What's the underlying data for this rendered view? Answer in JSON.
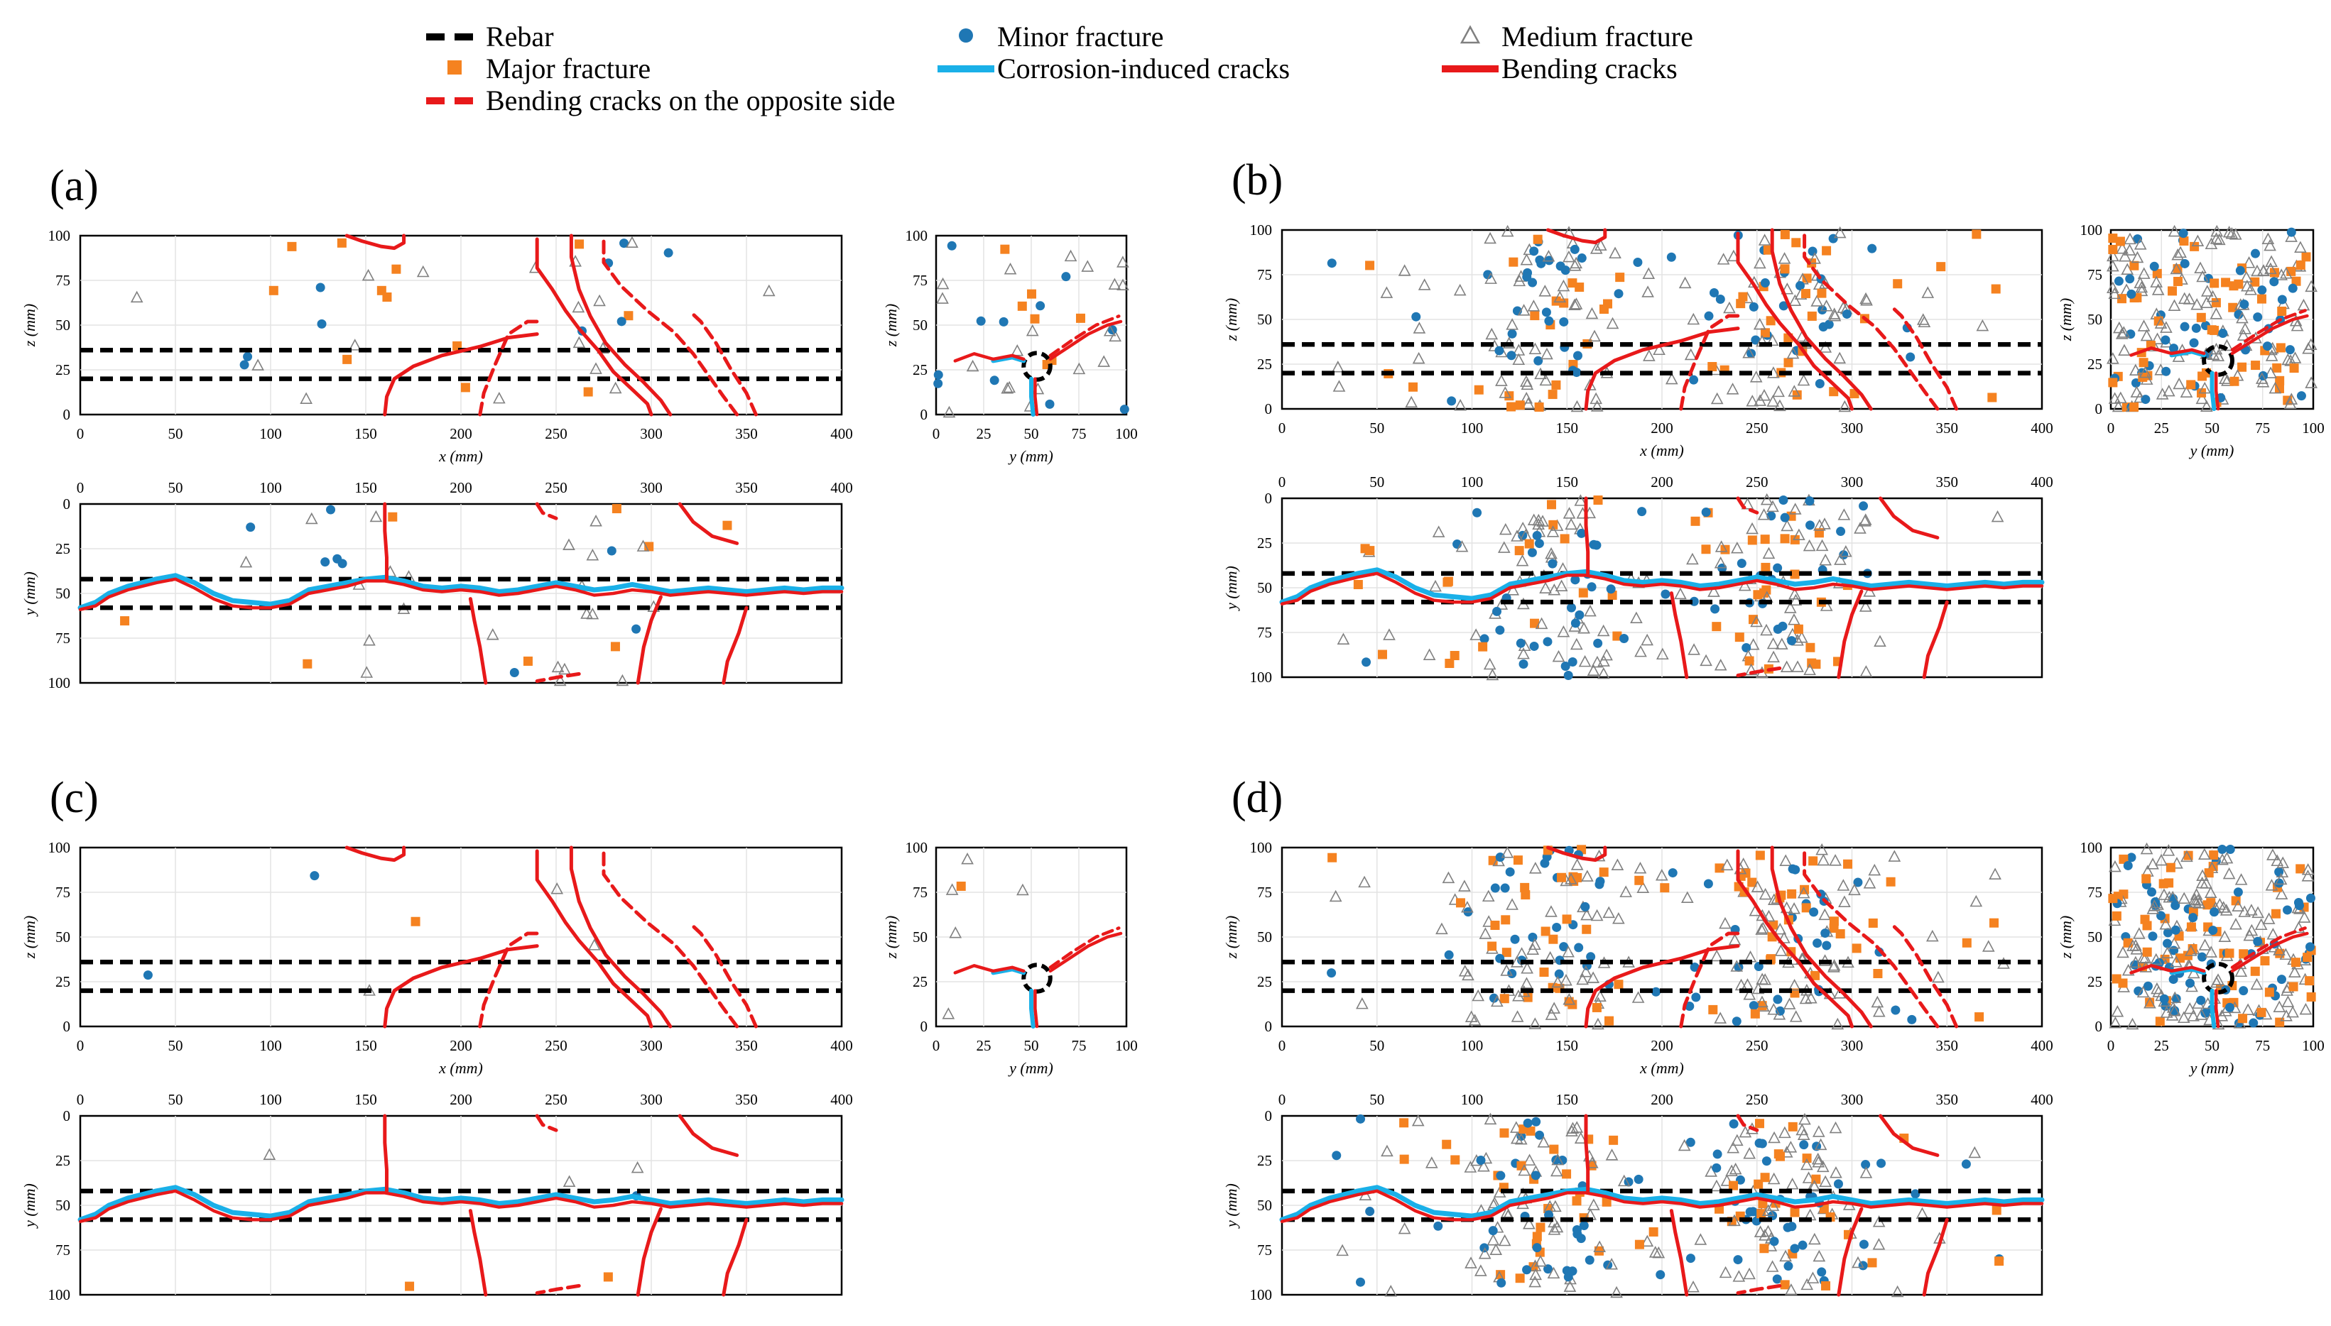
{
  "legend": {
    "items": [
      {
        "key": "rebar",
        "label": "Rebar",
        "kind": "dash",
        "color": "#000000"
      },
      {
        "key": "minor",
        "label": "Minor fracture",
        "kind": "circle",
        "color": "#1f77b4"
      },
      {
        "key": "medium",
        "label": "Medium fracture",
        "kind": "triangle",
        "color": "#808080"
      },
      {
        "key": "major",
        "label": "Major fracture",
        "kind": "square",
        "color": "#f58220"
      },
      {
        "key": "corrosion",
        "label": "Corrosion-induced cracks",
        "kind": "line",
        "color": "#1ab0e8"
      },
      {
        "key": "bending",
        "label": "Bending cracks",
        "kind": "line",
        "color": "#e8191a"
      },
      {
        "key": "bending_opp",
        "label": "Bending cracks on the opposite side",
        "kind": "dashline",
        "color": "#e8191a"
      }
    ]
  },
  "axis_labels": {
    "x": "x (mm)",
    "y": "y (mm)",
    "z": "z (mm)"
  },
  "chart_data": [
    {
      "panel": "(a)",
      "type": "scatter",
      "density": 38,
      "seed": 11,
      "xz": {
        "xlim": [
          0,
          400
        ],
        "zlim": [
          0,
          100
        ],
        "xticks": [
          "0",
          "50",
          "100",
          "150",
          "200",
          "250",
          "300",
          "350",
          "400"
        ],
        "zticks": [
          "0",
          "25",
          "50",
          "75",
          "100"
        ]
      },
      "xy": {
        "xlim": [
          0,
          400
        ],
        "ylim": [
          0,
          100
        ],
        "yticks": [
          "0",
          "25",
          "50",
          "75",
          "100"
        ]
      },
      "yz": {
        "ylim": [
          0,
          100
        ],
        "zlim": [
          0,
          100
        ],
        "yticks": [
          "0",
          "25",
          "50",
          "75",
          "100"
        ]
      }
    },
    {
      "panel": "(b)",
      "type": "scatter",
      "density": 230,
      "seed": 23,
      "xz": {
        "xlim": [
          0,
          400
        ],
        "zlim": [
          0,
          100
        ],
        "xticks": [
          "0",
          "50",
          "100",
          "150",
          "200",
          "250",
          "300",
          "350",
          "400"
        ],
        "zticks": [
          "0",
          "25",
          "50",
          "75",
          "100"
        ]
      },
      "xy": {
        "xlim": [
          0,
          400
        ],
        "ylim": [
          0,
          100
        ],
        "yticks": [
          "0",
          "25",
          "50",
          "75",
          "100"
        ]
      },
      "yz": {
        "ylim": [
          0,
          100
        ],
        "zlim": [
          0,
          100
        ],
        "yticks": [
          "0",
          "25",
          "50",
          "75",
          "100"
        ]
      }
    },
    {
      "panel": "(c)",
      "type": "scatter",
      "density": 6,
      "seed": 37,
      "xz": {
        "xlim": [
          0,
          400
        ],
        "zlim": [
          0,
          100
        ],
        "xticks": [
          "0",
          "50",
          "100",
          "150",
          "200",
          "250",
          "300",
          "350",
          "400"
        ],
        "zticks": [
          "0",
          "25",
          "50",
          "75",
          "100"
        ]
      },
      "xy": {
        "xlim": [
          0,
          400
        ],
        "ylim": [
          0,
          100
        ],
        "yticks": [
          "0",
          "25",
          "50",
          "75",
          "100"
        ]
      },
      "yz": {
        "ylim": [
          0,
          100
        ],
        "zlim": [
          0,
          100
        ],
        "yticks": [
          "0",
          "25",
          "50",
          "75",
          "100"
        ]
      }
    },
    {
      "panel": "(d)",
      "type": "scatter",
      "density": 270,
      "seed": 53,
      "xz": {
        "xlim": [
          0,
          400
        ],
        "zlim": [
          0,
          100
        ],
        "xticks": [
          "0",
          "50",
          "100",
          "150",
          "200",
          "250",
          "300",
          "350",
          "400"
        ],
        "zticks": [
          "0",
          "25",
          "50",
          "75",
          "100"
        ]
      },
      "xy": {
        "xlim": [
          0,
          400
        ],
        "ylim": [
          0,
          100
        ],
        "yticks": [
          "0",
          "25",
          "50",
          "75",
          "100"
        ]
      },
      "yz": {
        "ylim": [
          0,
          100
        ],
        "zlim": [
          0,
          100
        ],
        "yticks": [
          "0",
          "25",
          "50",
          "75",
          "100"
        ]
      }
    }
  ],
  "cracks": {
    "rebar_xz_z": [
      36,
      20
    ],
    "rebar_xy_y": [
      42,
      58
    ],
    "rebar_yz_center": [
      53,
      27
    ],
    "rebar_yz_radius": 7,
    "xz_bending": [
      [
        [
          160,
          0
        ],
        [
          161,
          10
        ],
        [
          165,
          20
        ],
        [
          175,
          27
        ],
        [
          190,
          33
        ],
        [
          210,
          38
        ],
        [
          225,
          43
        ],
        [
          240,
          45
        ]
      ],
      [
        [
          300,
          0
        ],
        [
          298,
          6
        ],
        [
          290,
          14
        ],
        [
          280,
          24
        ],
        [
          272,
          36
        ],
        [
          262,
          48
        ],
        [
          255,
          58
        ],
        [
          248,
          70
        ],
        [
          240,
          82
        ],
        [
          240,
          98
        ]
      ],
      [
        [
          310,
          0
        ],
        [
          305,
          8
        ],
        [
          296,
          18
        ],
        [
          286,
          28
        ],
        [
          276,
          40
        ],
        [
          268,
          55
        ],
        [
          262,
          70
        ],
        [
          258,
          88
        ],
        [
          258,
          100
        ]
      ],
      [
        [
          140,
          100
        ],
        [
          148,
          97
        ],
        [
          158,
          94
        ],
        [
          165,
          93
        ],
        [
          170,
          96
        ],
        [
          170,
          100
        ]
      ]
    ],
    "xz_bending_opp": [
      [
        [
          210,
          0
        ],
        [
          212,
          12
        ],
        [
          218,
          28
        ],
        [
          225,
          45
        ],
        [
          235,
          52
        ],
        [
          242,
          52
        ]
      ],
      [
        [
          345,
          0
        ],
        [
          338,
          10
        ],
        [
          330,
          22
        ],
        [
          322,
          34
        ],
        [
          312,
          46
        ],
        [
          298,
          58
        ],
        [
          284,
          72
        ],
        [
          275,
          85
        ],
        [
          275,
          100
        ]
      ],
      [
        [
          355,
          0
        ],
        [
          350,
          12
        ],
        [
          342,
          25
        ],
        [
          334,
          40
        ],
        [
          326,
          52
        ],
        [
          320,
          58
        ]
      ]
    ],
    "xy_corrosion": [
      [
        0,
        58
      ],
      [
        8,
        55
      ],
      [
        15,
        50
      ],
      [
        25,
        46
      ],
      [
        40,
        42
      ],
      [
        50,
        40
      ],
      [
        60,
        44
      ],
      [
        70,
        50
      ],
      [
        80,
        54
      ],
      [
        90,
        55
      ],
      [
        100,
        56
      ],
      [
        110,
        54
      ],
      [
        120,
        48
      ],
      [
        130,
        46
      ],
      [
        140,
        44
      ],
      [
        150,
        42
      ],
      [
        160,
        41
      ],
      [
        170,
        43
      ],
      [
        180,
        46
      ],
      [
        190,
        47
      ],
      [
        200,
        46
      ],
      [
        210,
        47
      ],
      [
        220,
        49
      ],
      [
        230,
        48
      ],
      [
        240,
        46
      ],
      [
        250,
        44
      ],
      [
        260,
        46
      ],
      [
        270,
        48
      ],
      [
        280,
        47
      ],
      [
        290,
        45
      ],
      [
        300,
        47
      ],
      [
        310,
        49
      ],
      [
        320,
        48
      ],
      [
        330,
        47
      ],
      [
        340,
        48
      ],
      [
        350,
        49
      ],
      [
        360,
        48
      ],
      [
        370,
        47
      ],
      [
        380,
        48
      ],
      [
        390,
        47
      ],
      [
        400,
        47
      ]
    ],
    "xy_bending_line": [
      [
        0,
        59
      ],
      [
        8,
        57
      ],
      [
        15,
        52
      ],
      [
        25,
        48
      ],
      [
        40,
        44
      ],
      [
        50,
        42
      ],
      [
        60,
        47
      ],
      [
        70,
        53
      ],
      [
        80,
        57
      ],
      [
        90,
        58
      ],
      [
        100,
        58
      ],
      [
        110,
        56
      ],
      [
        120,
        50
      ],
      [
        130,
        48
      ],
      [
        140,
        46
      ],
      [
        150,
        43
      ],
      [
        160,
        43
      ],
      [
        170,
        45
      ],
      [
        180,
        48
      ],
      [
        190,
        49
      ],
      [
        200,
        48
      ],
      [
        210,
        49
      ],
      [
        220,
        51
      ],
      [
        230,
        50
      ],
      [
        240,
        48
      ],
      [
        250,
        46
      ],
      [
        260,
        48
      ],
      [
        270,
        51
      ],
      [
        280,
        50
      ],
      [
        290,
        48
      ],
      [
        300,
        49
      ],
      [
        310,
        51
      ],
      [
        320,
        50
      ],
      [
        330,
        49
      ],
      [
        340,
        50
      ],
      [
        350,
        51
      ],
      [
        360,
        50
      ],
      [
        370,
        49
      ],
      [
        380,
        50
      ],
      [
        390,
        49
      ],
      [
        400,
        49
      ]
    ],
    "xy_bending_branches": [
      [
        [
          160,
          0
        ],
        [
          160,
          15
        ],
        [
          161,
          30
        ],
        [
          161,
          42
        ]
      ],
      [
        [
          205,
          53
        ],
        [
          207,
          65
        ],
        [
          210,
          80
        ],
        [
          213,
          100
        ]
      ],
      [
        [
          305,
          52
        ],
        [
          300,
          65
        ],
        [
          296,
          80
        ],
        [
          293,
          100
        ]
      ],
      [
        [
          315,
          0
        ],
        [
          322,
          10
        ],
        [
          332,
          18
        ],
        [
          345,
          22
        ]
      ],
      [
        [
          350,
          58
        ],
        [
          346,
          72
        ],
        [
          340,
          88
        ],
        [
          338,
          100
        ]
      ]
    ],
    "xy_bending_opp": [
      [
        [
          240,
          0
        ],
        [
          243,
          5
        ],
        [
          250,
          8
        ]
      ],
      [
        [
          262,
          95
        ],
        [
          250,
          97
        ],
        [
          240,
          99
        ]
      ]
    ],
    "yz_bending": [
      [
        [
          10,
          30
        ],
        [
          20,
          34
        ],
        [
          30,
          31
        ],
        [
          40,
          33
        ],
        [
          46,
          31
        ]
      ],
      [
        [
          60,
          31
        ],
        [
          70,
          38
        ],
        [
          80,
          45
        ],
        [
          90,
          50
        ],
        [
          97,
          52
        ]
      ],
      [
        [
          52,
          20
        ],
        [
          52,
          10
        ],
        [
          53,
          0
        ]
      ]
    ],
    "yz_bending_opp": [
      [
        [
          60,
          33
        ],
        [
          72,
          42
        ],
        [
          84,
          50
        ],
        [
          96,
          55
        ]
      ]
    ],
    "yz_corrosion": [
      [
        [
          30,
          30
        ],
        [
          40,
          32
        ],
        [
          46,
          30
        ]
      ],
      [
        [
          50,
          20
        ],
        [
          50,
          10
        ],
        [
          51,
          0
        ]
      ]
    ]
  }
}
